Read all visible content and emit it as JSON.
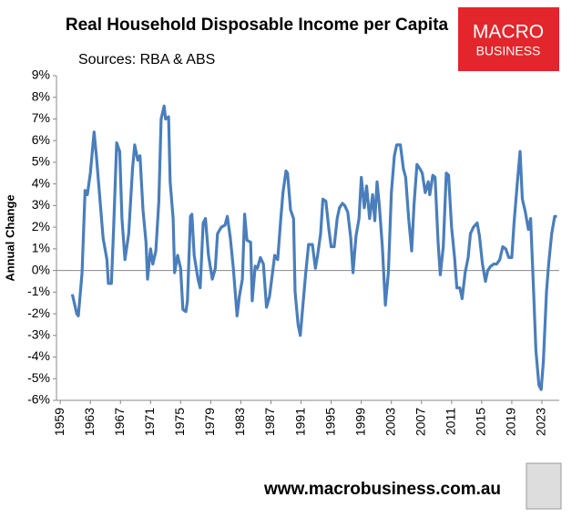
{
  "chart_data": {
    "type": "line",
    "title": "Real Household Disposable Income per Capita",
    "subtitle": "Sources: RBA & ABS",
    "y_label": "Annual Change",
    "logo_top": "MACRO",
    "logo_bottom": "BUSINESS",
    "footer": "www.macrobusiness.com.au",
    "color": "#4a7ebb",
    "zero_line": true,
    "xlim": [
      1958.5,
      2025.3
    ],
    "xticks": [
      1959,
      1963,
      1967,
      1971,
      1975,
      1979,
      1983,
      1987,
      1991,
      1995,
      1999,
      2003,
      2007,
      2011,
      2015,
      2019,
      2023
    ],
    "ylim": [
      -6,
      9
    ],
    "yticks": [
      {
        "value": -6,
        "label": "-6%"
      },
      {
        "value": -5,
        "label": "-5%"
      },
      {
        "value": -4,
        "label": "-4%"
      },
      {
        "value": -3,
        "label": "-3%"
      },
      {
        "value": -2,
        "label": "-2%"
      },
      {
        "value": -1,
        "label": "-1%"
      },
      {
        "value": 0,
        "label": "0%"
      },
      {
        "value": 1,
        "label": "1%"
      },
      {
        "value": 2,
        "label": "2%"
      },
      {
        "value": 3,
        "label": "3%"
      },
      {
        "value": 4,
        "label": "4%"
      },
      {
        "value": 5,
        "label": "5%"
      },
      {
        "value": 6,
        "label": "6%"
      },
      {
        "value": 7,
        "label": "7%"
      },
      {
        "value": 8,
        "label": "8%"
      },
      {
        "value": 9,
        "label": "9%"
      }
    ],
    "x": [
      1960.6,
      1961.2,
      1961.4,
      1961.9,
      1962.3,
      1962.6,
      1963.0,
      1963.5,
      1963.8,
      1964.3,
      1964.7,
      1965.2,
      1965.4,
      1965.8,
      1966.1,
      1966.5,
      1966.9,
      1967.2,
      1967.6,
      1968.1,
      1968.6,
      1968.9,
      1969.3,
      1969.6,
      1970.0,
      1970.4,
      1970.6,
      1971.0,
      1971.3,
      1971.7,
      1972.1,
      1972.4,
      1972.8,
      1973.0,
      1973.4,
      1973.6,
      1974.0,
      1974.2,
      1974.6,
      1975.0,
      1975.3,
      1975.7,
      1975.9,
      1976.3,
      1976.5,
      1976.8,
      1977.3,
      1977.6,
      1978.0,
      1978.3,
      1978.7,
      1979.2,
      1979.6,
      1979.9,
      1980.4,
      1980.9,
      1981.2,
      1981.6,
      1982.0,
      1982.5,
      1982.8,
      1983.2,
      1983.5,
      1983.8,
      1984.3,
      1984.5,
      1984.9,
      1985.2,
      1985.6,
      1986.0,
      1986.4,
      1986.8,
      1987.2,
      1987.5,
      1987.9,
      1988.3,
      1988.6,
      1989.0,
      1989.2,
      1989.6,
      1990.0,
      1990.2,
      1990.6,
      1990.9,
      1991.3,
      1991.6,
      1992.0,
      1992.5,
      1992.9,
      1993.2,
      1993.6,
      1993.9,
      1994.3,
      1994.7,
      1995.0,
      1995.4,
      1995.8,
      1996.1,
      1996.5,
      1996.8,
      1997.2,
      1997.6,
      1997.9,
      1998.3,
      1998.7,
      1999.0,
      1999.4,
      1999.7,
      2000.1,
      2000.5,
      2000.8,
      2001.1,
      2001.4,
      2001.8,
      2002.2,
      2002.6,
      2003.0,
      2003.4,
      2003.7,
      2004.2,
      2004.6,
      2004.9,
      2005.3,
      2005.7,
      2006.0,
      2006.4,
      2006.8,
      2007.1,
      2007.5,
      2007.9,
      2008.1,
      2008.5,
      2008.8,
      2009.2,
      2009.5,
      2009.9,
      2010.3,
      2010.6,
      2011.0,
      2011.4,
      2011.7,
      2012.1,
      2012.4,
      2012.8,
      2013.2,
      2013.5,
      2013.9,
      2014.4,
      2014.7,
      2015.1,
      2015.5,
      2015.8,
      2016.2,
      2016.6,
      2017.0,
      2017.4,
      2017.8,
      2018.2,
      2018.6,
      2019.0,
      2019.3,
      2019.7,
      2020.1,
      2020.4,
      2020.8,
      2021.2,
      2021.5,
      2021.9,
      2022.2,
      2022.6,
      2022.9,
      2023.2,
      2023.6,
      2023.9,
      2024.3,
      2024.7,
      2025.0
    ],
    "values": [
      -1.1,
      -2.0,
      -2.1,
      -0.1,
      3.7,
      3.5,
      4.5,
      6.4,
      5.3,
      3.2,
      1.5,
      0.5,
      -0.6,
      -0.6,
      2.0,
      5.9,
      5.5,
      2.4,
      0.5,
      1.7,
      4.7,
      5.8,
      5.1,
      5.3,
      2.8,
      1.3,
      -0.4,
      1.0,
      0.3,
      0.9,
      3.2,
      7.0,
      7.6,
      7.0,
      7.1,
      4.1,
      2.4,
      -0.1,
      0.7,
      0.1,
      -1.8,
      -1.9,
      -1.4,
      2.5,
      2.6,
      0.7,
      -0.4,
      -0.8,
      2.2,
      2.4,
      0.7,
      -0.4,
      0.1,
      1.7,
      2.0,
      2.1,
      2.5,
      1.5,
      0.1,
      -2.1,
      -1.2,
      -0.4,
      2.6,
      1.4,
      1.3,
      -1.4,
      0.2,
      0.1,
      0.6,
      0.3,
      -1.7,
      -1.2,
      -0.1,
      0.7,
      0.5,
      2.4,
      3.6,
      4.6,
      4.5,
      2.8,
      2.4,
      -1.0,
      -2.5,
      -3.0,
      -1.4,
      -0.2,
      1.2,
      1.2,
      0.1,
      0.7,
      1.7,
      3.3,
      3.2,
      1.9,
      1.1,
      1.1,
      2.4,
      2.9,
      3.1,
      3.0,
      2.7,
      1.5,
      -0.1,
      1.6,
      2.4,
      4.3,
      2.9,
      3.9,
      2.4,
      3.5,
      2.3,
      4.1,
      3.0,
      1.1,
      -1.6,
      -0.1,
      3.6,
      5.3,
      5.8,
      5.8,
      4.7,
      4.3,
      2.4,
      0.9,
      3.0,
      4.9,
      4.7,
      4.5,
      3.6,
      4.1,
      3.5,
      4.4,
      4.3,
      1.3,
      -0.2,
      1.1,
      4.5,
      4.4,
      2.0,
      0.6,
      -0.8,
      -0.8,
      -1.3,
      -0.1,
      0.6,
      1.7,
      2.0,
      2.2,
      1.6,
      0.3,
      -0.5,
      0.0,
      0.2,
      0.3,
      0.3,
      0.5,
      1.1,
      1.0,
      0.6,
      0.6,
      2.2,
      3.9,
      5.5,
      3.3,
      2.7,
      1.9,
      2.4,
      -1.0,
      -3.7,
      -5.3,
      -5.5,
      -4.2,
      -1.0,
      0.3,
      1.7,
      2.5,
      2.5
    ]
  }
}
